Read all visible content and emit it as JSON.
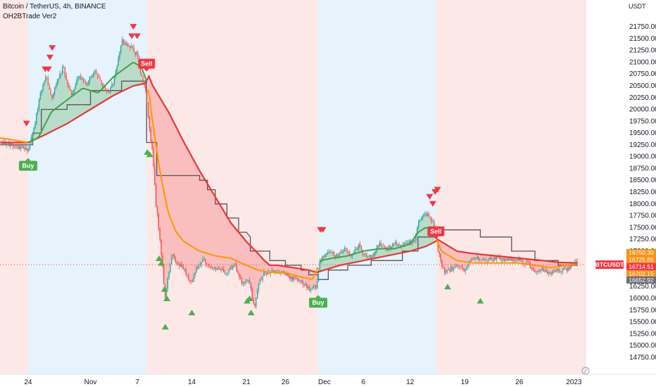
{
  "header": {
    "title": "Bitcoin / TetherUS, 4h, BINANCE",
    "indicator": "OH2BTrade Ver2"
  },
  "chart_data": {
    "type": "candlestick",
    "symbol": "BTCUSDT",
    "quote_unit": "USDT",
    "y_ticks": [
      14750,
      15000,
      15250,
      15500,
      15750,
      16000,
      16250,
      16500,
      16750,
      17000,
      17250,
      17500,
      17750,
      18000,
      18250,
      18500,
      18750,
      19000,
      19250,
      19500,
      19750,
      20000,
      20250,
      20500,
      20750,
      21000,
      21250,
      21500,
      21750
    ],
    "y_tick_labels": [
      "14750.00",
      "15000.00",
      "15250.00",
      "15500.00",
      "15750.00",
      "16000.00",
      "16250.00",
      "16500.00",
      "16750.00",
      "17000.00",
      "17250.00",
      "17500.00",
      "17750.00",
      "18000.00",
      "18250.00",
      "18500.00",
      "18750.00",
      "19000.00",
      "19250.00",
      "19500.00",
      "19750.00",
      "20000.00",
      "20250.00",
      "20500.00",
      "20750.00",
      "21000.00",
      "21250.00",
      "21500.00",
      "21750.00"
    ],
    "ylim": [
      14600,
      21900
    ],
    "x_ticks": [
      {
        "label": "24",
        "day": 0
      },
      {
        "label": "Nov",
        "day": 8
      },
      {
        "label": "7",
        "day": 14
      },
      {
        "label": "14",
        "day": 21
      },
      {
        "label": "21",
        "day": 28
      },
      {
        "label": "26",
        "day": 33
      },
      {
        "label": "Dec",
        "day": 38
      },
      {
        "label": "6",
        "day": 43
      },
      {
        "label": "12",
        "day": 49
      },
      {
        "label": "19",
        "day": 56
      },
      {
        "label": "26",
        "day": 63
      },
      {
        "label": "2023",
        "day": 70
      }
    ],
    "xlim": [
      -3.6,
      71.5
    ],
    "regimes": [
      {
        "start": -3.6,
        "end": 0,
        "trend": "bear"
      },
      {
        "start": 0,
        "end": 15.2,
        "trend": "bull"
      },
      {
        "start": 15.2,
        "end": 37.2,
        "trend": "bear"
      },
      {
        "start": 37.2,
        "end": 52.3,
        "trend": "bull"
      },
      {
        "start": 52.3,
        "end": 71.5,
        "trend": "bear"
      }
    ],
    "price_path": [
      [
        -3.6,
        19300
      ],
      [
        -1,
        19200
      ],
      [
        0,
        19150
      ],
      [
        0.8,
        19600
      ],
      [
        1.5,
        20300
      ],
      [
        2.3,
        20700
      ],
      [
        3,
        20200
      ],
      [
        3.6,
        20550
      ],
      [
        4.5,
        20900
      ],
      [
        5.5,
        20300
      ],
      [
        6.5,
        20700
      ],
      [
        7.5,
        20550
      ],
      [
        8.5,
        20800
      ],
      [
        9.5,
        20500
      ],
      [
        10.3,
        20350
      ],
      [
        11,
        20600
      ],
      [
        12,
        21450
      ],
      [
        13,
        21350
      ],
      [
        14,
        21150
      ],
      [
        14.5,
        20700
      ],
      [
        15,
        20500
      ],
      [
        15.5,
        19700
      ],
      [
        16,
        19000
      ],
      [
        16.4,
        18000
      ],
      [
        16.8,
        17400
      ],
      [
        17.2,
        16700
      ],
      [
        17.6,
        16000
      ],
      [
        18,
        16500
      ],
      [
        18.5,
        17000
      ],
      [
        19,
        16700
      ],
      [
        19.5,
        16700
      ],
      [
        20,
        16600
      ],
      [
        21,
        16300
      ],
      [
        21.5,
        16600
      ],
      [
        22.5,
        16800
      ],
      [
        23.5,
        16650
      ],
      [
        24.5,
        16600
      ],
      [
        25.5,
        16550
      ],
      [
        26.5,
        16700
      ],
      [
        27.5,
        16300
      ],
      [
        28.3,
        16400
      ],
      [
        29,
        15800
      ],
      [
        29.5,
        16300
      ],
      [
        30.3,
        16550
      ],
      [
        31,
        16550
      ],
      [
        32,
        16550
      ],
      [
        33,
        16500
      ],
      [
        34,
        16400
      ],
      [
        35,
        16350
      ],
      [
        36,
        16200
      ],
      [
        37,
        16250
      ],
      [
        37.5,
        16850
      ],
      [
        38.5,
        17000
      ],
      [
        39.5,
        16900
      ],
      [
        40.5,
        17050
      ],
      [
        41.5,
        16900
      ],
      [
        42.5,
        17150
      ],
      [
        43,
        16950
      ],
      [
        44,
        16850
      ],
      [
        45,
        17150
      ],
      [
        46,
        17050
      ],
      [
        47,
        17150
      ],
      [
        48,
        17150
      ],
      [
        49.5,
        17200
      ],
      [
        50,
        17600
      ],
      [
        51,
        17800
      ],
      [
        52,
        17600
      ],
      [
        52.5,
        17100
      ],
      [
        53,
        16700
      ],
      [
        53.5,
        16550
      ],
      [
        54.5,
        16650
      ],
      [
        55.5,
        16700
      ],
      [
        56,
        16550
      ],
      [
        56.5,
        16800
      ],
      [
        57.5,
        16850
      ],
      [
        58.5,
        16800
      ],
      [
        60,
        16850
      ],
      [
        61.5,
        16800
      ],
      [
        63,
        16800
      ],
      [
        64,
        16750
      ],
      [
        65,
        16550
      ],
      [
        66,
        16600
      ],
      [
        67,
        16500
      ],
      [
        68,
        16600
      ],
      [
        69,
        16600
      ],
      [
        70,
        16750
      ],
      [
        70.5,
        16714.51
      ]
    ],
    "slow_line": [
      [
        -3.6,
        19300
      ],
      [
        0,
        19300
      ],
      [
        2,
        19450
      ],
      [
        5,
        19700
      ],
      [
        8,
        20000
      ],
      [
        11,
        20300
      ],
      [
        13.5,
        20500
      ],
      [
        15,
        20550
      ],
      [
        15.5,
        20700
      ],
      [
        16,
        20500
      ],
      [
        18,
        19950
      ],
      [
        20,
        19300
      ],
      [
        22,
        18700
      ],
      [
        24,
        18150
      ],
      [
        26,
        17600
      ],
      [
        28,
        17200
      ],
      [
        29.5,
        16950
      ],
      [
        30.3,
        16800
      ],
      [
        31,
        16700
      ],
      [
        32,
        16700
      ],
      [
        34,
        16650
      ],
      [
        36,
        16600
      ],
      [
        37,
        16550
      ],
      [
        38,
        16600
      ],
      [
        40,
        16700
      ],
      [
        43,
        16800
      ],
      [
        46,
        16900
      ],
      [
        49,
        17000
      ],
      [
        51,
        17100
      ],
      [
        52.2,
        17200
      ],
      [
        52.5,
        17250
      ],
      [
        53,
        17200
      ],
      [
        55,
        17000
      ],
      [
        57,
        16950
      ],
      [
        60,
        16900
      ],
      [
        63,
        16850
      ],
      [
        66,
        16800
      ],
      [
        68,
        16760
      ],
      [
        70.5,
        16750
      ]
    ],
    "fast_line": [
      [
        -3.6,
        19400
      ],
      [
        0,
        19300
      ],
      [
        1.3,
        19400
      ],
      [
        3,
        19950
      ],
      [
        5,
        20200
      ],
      [
        7,
        20450
      ],
      [
        9,
        20350
      ],
      [
        11,
        20700
      ],
      [
        13.5,
        21000
      ],
      [
        14.5,
        20900
      ],
      [
        15,
        20700
      ],
      [
        15.5,
        20350
      ],
      [
        16,
        19700
      ],
      [
        17,
        18600
      ],
      [
        18,
        17800
      ],
      [
        19,
        17400
      ],
      [
        20,
        17200
      ],
      [
        22,
        17000
      ],
      [
        24,
        16900
      ],
      [
        26,
        16850
      ],
      [
        28,
        16700
      ],
      [
        29.5,
        16600
      ],
      [
        31,
        16550
      ],
      [
        33,
        16550
      ],
      [
        35,
        16450
      ],
      [
        36.5,
        16400
      ],
      [
        37.5,
        16800
      ],
      [
        39,
        16850
      ],
      [
        41,
        16900
      ],
      [
        43,
        17000
      ],
      [
        45,
        17050
      ],
      [
        47,
        17050
      ],
      [
        49,
        17150
      ],
      [
        50,
        17400
      ],
      [
        51,
        17500
      ],
      [
        52,
        17450
      ],
      [
        52.5,
        17200
      ],
      [
        53,
        17000
      ],
      [
        55,
        16800
      ],
      [
        57,
        16750
      ],
      [
        60,
        16750
      ],
      [
        63,
        16750
      ],
      [
        65,
        16700
      ],
      [
        67,
        16650
      ],
      [
        69,
        16700
      ],
      [
        70.5,
        16725.65
      ]
    ],
    "trail_stop": [
      [
        -3.6,
        19250
      ],
      [
        0,
        19250
      ],
      [
        0.6,
        19250
      ],
      [
        0.6,
        19500
      ],
      [
        1.7,
        19500
      ],
      [
        1.7,
        20000
      ],
      [
        3.5,
        20000
      ],
      [
        3.5,
        20000
      ],
      [
        5,
        20000
      ],
      [
        5,
        20100
      ],
      [
        8,
        20100
      ],
      [
        8,
        20400
      ],
      [
        10,
        20400
      ],
      [
        10,
        20400
      ],
      [
        12,
        20400
      ],
      [
        12,
        20600
      ],
      [
        14.5,
        20600
      ],
      [
        15.2,
        20600
      ],
      [
        15.2,
        19300
      ],
      [
        16.5,
        19300
      ],
      [
        16.5,
        18600
      ],
      [
        22,
        18600
      ],
      [
        22,
        18500
      ],
      [
        23,
        18500
      ],
      [
        23,
        18300
      ],
      [
        24,
        18300
      ],
      [
        24,
        18000
      ],
      [
        25.5,
        18000
      ],
      [
        25.5,
        17700
      ],
      [
        27,
        17700
      ],
      [
        27,
        17400
      ],
      [
        28,
        17400
      ],
      [
        28.5,
        17300
      ],
      [
        28.5,
        17000
      ],
      [
        30,
        17000
      ],
      [
        31,
        17000
      ],
      [
        31,
        16800
      ],
      [
        33,
        16800
      ],
      [
        33,
        16700
      ],
      [
        35,
        16700
      ],
      [
        35,
        16600
      ],
      [
        36,
        16600
      ],
      [
        36,
        16500
      ],
      [
        37.2,
        16500
      ],
      [
        37.2,
        16400
      ],
      [
        38.5,
        16400
      ],
      [
        38.5,
        16600
      ],
      [
        41,
        16600
      ],
      [
        41,
        16700
      ],
      [
        44,
        16700
      ],
      [
        44,
        16800
      ],
      [
        48,
        16800
      ],
      [
        48,
        17000
      ],
      [
        50,
        17000
      ],
      [
        50,
        17300
      ],
      [
        52.3,
        17300
      ],
      [
        52.3,
        17450
      ],
      [
        58,
        17450
      ],
      [
        58,
        17300
      ],
      [
        62,
        17300
      ],
      [
        62,
        17000
      ],
      [
        65,
        17000
      ],
      [
        65,
        16800
      ],
      [
        68,
        16800
      ],
      [
        68,
        16700
      ],
      [
        70.5,
        16700
      ]
    ],
    "buy_signals": [
      {
        "day": 0,
        "price": 19150,
        "label": "Buy"
      },
      {
        "day": 37.2,
        "price": 16250,
        "label": "Buy"
      }
    ],
    "sell_signals": [
      {
        "day": 15.2,
        "price": 20850,
        "label": "Sell"
      },
      {
        "day": 52.3,
        "price": 17300,
        "label": "Sell"
      }
    ],
    "down_markers": [
      [
        -0.2,
        19700
      ],
      [
        2.2,
        20850
      ],
      [
        2.8,
        21100
      ],
      [
        3.1,
        21300
      ],
      [
        2.6,
        20850
      ],
      [
        13.3,
        21550
      ],
      [
        14,
        21550
      ],
      [
        13.5,
        21750
      ],
      [
        37.5,
        17450
      ],
      [
        37.8,
        17450
      ],
      [
        51.5,
        18150
      ],
      [
        52.2,
        18250
      ],
      [
        51.9,
        18000
      ],
      [
        52.5,
        18300
      ]
    ],
    "up_markers": [
      [
        15.3,
        19100
      ],
      [
        15.6,
        19050
      ],
      [
        16.8,
        16850
      ],
      [
        17.1,
        16750
      ],
      [
        17.5,
        16200
      ],
      [
        17.8,
        16000
      ],
      [
        17.6,
        15400
      ],
      [
        21,
        15700
      ],
      [
        28.1,
        15950
      ],
      [
        28.4,
        16000
      ],
      [
        28.6,
        15700
      ],
      [
        53.8,
        16250
      ],
      [
        58,
        15950
      ]
    ],
    "price_labels": [
      {
        "value": 16750.3,
        "text": "16750.30",
        "color": "#f7931a"
      },
      {
        "value": 16725.65,
        "text": "16725.65",
        "color": "#f7931a"
      },
      {
        "value": 16714.51,
        "text": "16714.51",
        "color": "#f23645"
      },
      {
        "value": 16702.15,
        "text": "16702.15",
        "color": "#f7931a"
      },
      {
        "value": 16652.92,
        "text": "16652.92",
        "color": "#6b6e75"
      }
    ],
    "last_price": 16714.51,
    "symbol_tag": "BTCUSDT",
    "colors": {
      "bull_bg": "#e6f3fc",
      "bear_bg": "#fde8e8",
      "up": "#26a69a",
      "down": "#ef5350",
      "slow_line": "#e53935",
      "fast_line_up": "#43a047",
      "fast_line_down": "#ff9800",
      "trail": "#555555",
      "buy": "#4caf50",
      "sell": "#f23645"
    }
  }
}
